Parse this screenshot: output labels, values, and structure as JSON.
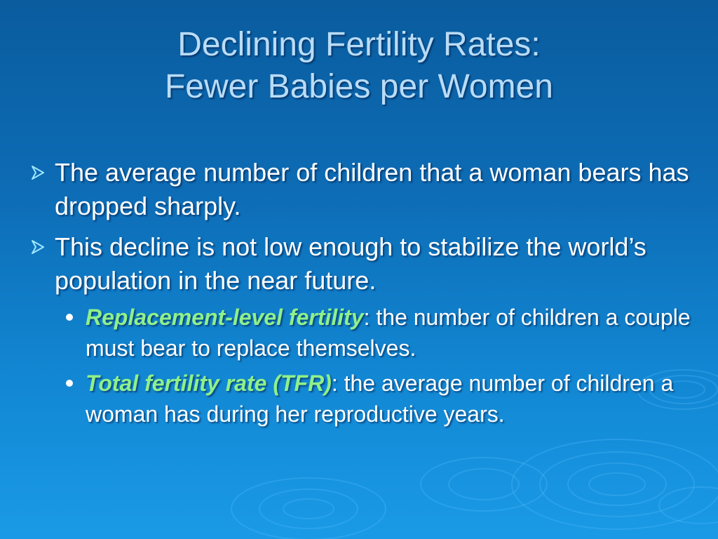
{
  "slide": {
    "background_colors": [
      "#0a5c9e",
      "#1a9ae6"
    ],
    "title_color": "#b9dcf7",
    "term_color": "#8ff08a",
    "bullet_arrow_color": "#9fe8ff",
    "title_line1": "Declining Fertility Rates:",
    "title_line2": "Fewer Babies per Women",
    "bullets": [
      {
        "text": "The average number of children that a woman bears has dropped sharply.",
        "icon": "arrow-bullet-icon"
      },
      {
        "text": "This decline is not low enough to stabilize the world’s population in the near future.",
        "icon": "arrow-bullet-icon"
      }
    ],
    "sub_bullets": [
      {
        "term": "Replacement-level fertility",
        "definition": ": the number of children a couple must bear to replace themselves.",
        "icon": "dot-bullet-icon"
      },
      {
        "term": "Total fertility rate (TFR)",
        "definition": ": the average number of children a woman has during her reproductive years.",
        "icon": "dot-bullet-icon"
      }
    ]
  }
}
